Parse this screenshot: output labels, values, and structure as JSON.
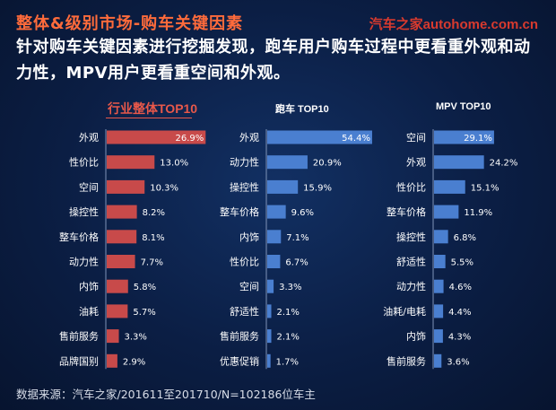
{
  "header": {
    "title": "整体&级别市场-购车关键因素",
    "brand": "汽车之家autohome.com.cn",
    "subtitle": "针对购车关键因素进行挖掘发现，跑车用户购车过程中更看重外观和动力性，MPV用户更看重空间和外观。"
  },
  "colors": {
    "red": "#c84a4a",
    "blue": "#4a7fd0"
  },
  "chart_data": [
    {
      "type": "bar",
      "title": "行业整体TOP10",
      "color": "#c84a4a",
      "categories": [
        "外观",
        "性价比",
        "空间",
        "操控性",
        "整车价格",
        "动力性",
        "内饰",
        "油耗",
        "售前服务",
        "品牌国别"
      ],
      "values": [
        26.9,
        13.0,
        10.3,
        8.2,
        8.1,
        7.7,
        5.8,
        5.7,
        3.3,
        2.9
      ],
      "labels": [
        "26.9%",
        "13.0%",
        "10.3%",
        "8.2%",
        "8.1%",
        "7.7%",
        "5.8%",
        "5.7%",
        "3.3%",
        "2.9%"
      ]
    },
    {
      "type": "bar",
      "title": "跑车 TOP10",
      "color": "#4a7fd0",
      "categories": [
        "外观",
        "动力性",
        "操控性",
        "整车价格",
        "内饰",
        "性价比",
        "空间",
        "舒适性",
        "售前服务",
        "优惠促销"
      ],
      "values": [
        54.4,
        20.9,
        15.9,
        9.6,
        7.1,
        6.7,
        3.3,
        2.1,
        2.1,
        1.7
      ],
      "labels": [
        "54.4%",
        "20.9%",
        "15.9%",
        "9.6%",
        "7.1%",
        "6.7%",
        "3.3%",
        "2.1%",
        "2.1%",
        "1.7%"
      ]
    },
    {
      "type": "bar",
      "title": "MPV TOP10",
      "color": "#4a7fd0",
      "categories": [
        "空间",
        "外观",
        "性价比",
        "整车价格",
        "操控性",
        "舒适性",
        "动力性",
        "油耗/电耗",
        "内饰",
        "售前服务"
      ],
      "values": [
        29.1,
        24.2,
        15.1,
        11.9,
        6.8,
        5.5,
        4.6,
        4.4,
        4.3,
        3.6
      ],
      "labels": [
        "29.1%",
        "24.2%",
        "15.1%",
        "11.9%",
        "6.8%",
        "5.5%",
        "4.6%",
        "4.4%",
        "4.3%",
        "3.6%"
      ]
    }
  ],
  "footer": {
    "source": "数据来源：汽车之家/201611至201710/N=102186位车主"
  }
}
